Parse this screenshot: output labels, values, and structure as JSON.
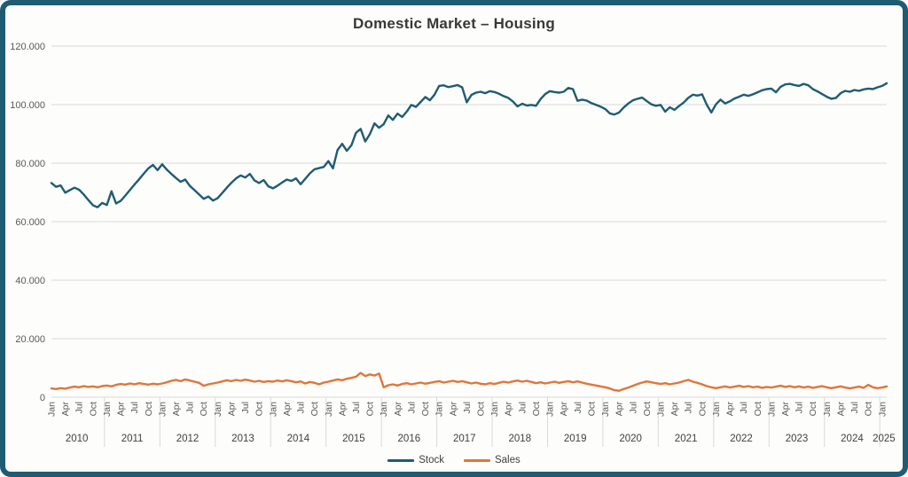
{
  "page": {
    "background": "#ffffff",
    "card_background": "#fdfdfb",
    "border_color": "#1f5c73"
  },
  "chart_data": {
    "type": "line",
    "title": "Domestic Market – Housing",
    "xlabel": "",
    "ylabel": "",
    "x_start": "Jan 2010",
    "x_end": "Feb 2025",
    "grid": true,
    "legend_position": "bottom",
    "gridline_color": "#d9d9d9",
    "tick_label_color": "#595959",
    "year_label_color": "#404040",
    "month_tick_labels": [
      "Jan",
      "Apr",
      "Jul",
      "Oct"
    ],
    "years": [
      "2010",
      "2011",
      "2012",
      "2013",
      "2014",
      "2015",
      "2016",
      "2017",
      "2018",
      "2019",
      "2020",
      "2021",
      "2022",
      "2023",
      "2024",
      "2025"
    ],
    "ylim_thousands": [
      0,
      120
    ],
    "yticks_thousands": [
      0,
      20,
      40,
      60,
      80,
      100,
      120
    ],
    "ytick_labels": [
      "0",
      "20.000",
      "40.000",
      "60.000",
      "80.000",
      "100.000",
      "120.000"
    ],
    "series": [
      {
        "name": "Stock",
        "color": "#1f5c73",
        "values_thousands": [
          73.2,
          71.9,
          72.4,
          69.9,
          70.8,
          71.6,
          70.9,
          69.3,
          67.4,
          65.6,
          64.9,
          66.4,
          65.7,
          70.4,
          66.2,
          67.1,
          68.9,
          70.8,
          72.7,
          74.5,
          76.4,
          78.2,
          79.4,
          77.6,
          79.6,
          77.8,
          76.3,
          74.9,
          73.6,
          74.4,
          72.2,
          70.8,
          69.3,
          67.8,
          68.6,
          67.2,
          68.0,
          69.8,
          71.6,
          73.3,
          74.8,
          75.8,
          75.1,
          76.3,
          74.1,
          73.2,
          74.2,
          72.1,
          71.4,
          72.3,
          73.4,
          74.4,
          73.9,
          74.8,
          72.8,
          74.6,
          76.5,
          77.9,
          78.3,
          78.7,
          80.7,
          78.2,
          84.5,
          86.6,
          84.2,
          86.1,
          90.4,
          91.7,
          87.4,
          89.9,
          93.6,
          92.1,
          93.3,
          96.3,
          94.8,
          96.9,
          95.8,
          97.6,
          99.9,
          99.2,
          100.9,
          102.6,
          101.5,
          103.4,
          106.4,
          106.6,
          106.0,
          106.3,
          106.7,
          105.9,
          100.8,
          103.3,
          104.1,
          104.4,
          103.9,
          104.6,
          104.3,
          103.7,
          102.9,
          102.3,
          101.1,
          99.4,
          100.3,
          99.7,
          99.9,
          99.6,
          101.9,
          103.6,
          104.6,
          104.3,
          104.1,
          104.4,
          105.7,
          105.3,
          101.3,
          101.7,
          101.4,
          100.5,
          99.9,
          99.3,
          98.5,
          97.0,
          96.6,
          97.3,
          99.0,
          100.4,
          101.5,
          102.0,
          102.4,
          101.2,
          100.1,
          99.6,
          99.9,
          97.6,
          99.1,
          98.2,
          99.5,
          100.7,
          102.3,
          103.4,
          103.1,
          103.5,
          100.0,
          97.3,
          100.1,
          101.7,
          100.4,
          101.1,
          102.1,
          102.7,
          103.4,
          103.0,
          103.5,
          104.2,
          104.9,
          105.3,
          105.5,
          104.2,
          106.1,
          106.9,
          107.1,
          106.7,
          106.4,
          107.1,
          106.6,
          105.3,
          104.5,
          103.6,
          102.7,
          102.0,
          102.3,
          103.9,
          104.7,
          104.4,
          105.0,
          104.7,
          105.2,
          105.5,
          105.3,
          105.9,
          106.4,
          107.3
        ]
      },
      {
        "name": "Sales",
        "color": "#e0763a",
        "values_thousands": [
          3.0,
          2.8,
          3.1,
          2.9,
          3.3,
          3.6,
          3.4,
          3.8,
          3.5,
          3.7,
          3.4,
          3.8,
          4.0,
          3.7,
          4.2,
          4.5,
          4.3,
          4.7,
          4.4,
          4.8,
          4.5,
          4.3,
          4.6,
          4.4,
          4.7,
          5.1,
          5.6,
          5.9,
          5.5,
          6.1,
          5.7,
          5.3,
          4.9,
          3.9,
          4.4,
          4.7,
          5.0,
          5.4,
          5.8,
          5.5,
          5.9,
          5.6,
          6.0,
          5.7,
          5.3,
          5.6,
          5.2,
          5.5,
          5.3,
          5.7,
          5.4,
          5.8,
          5.5,
          5.1,
          5.4,
          4.7,
          5.2,
          4.9,
          4.4,
          5.0,
          5.3,
          5.7,
          6.1,
          5.8,
          6.3,
          6.6,
          7.0,
          8.3,
          7.2,
          7.8,
          7.4,
          8.1,
          3.4,
          4.1,
          4.4,
          4.0,
          4.5,
          4.8,
          4.4,
          4.7,
          5.0,
          4.6,
          4.9,
          5.2,
          5.5,
          5.0,
          5.3,
          5.6,
          5.2,
          5.5,
          5.1,
          4.7,
          5.0,
          4.6,
          4.4,
          4.8,
          4.5,
          4.9,
          5.3,
          5.0,
          5.4,
          5.7,
          5.3,
          5.6,
          5.2,
          4.8,
          5.1,
          4.7,
          5.0,
          5.3,
          4.9,
          5.2,
          5.5,
          5.1,
          5.4,
          5.0,
          4.6,
          4.3,
          4.0,
          3.7,
          3.4,
          3.0,
          2.4,
          2.2,
          2.8,
          3.3,
          3.9,
          4.5,
          5.0,
          5.4,
          5.1,
          4.8,
          4.5,
          4.8,
          4.4,
          4.7,
          5.0,
          5.5,
          5.9,
          5.3,
          4.9,
          4.4,
          3.8,
          3.4,
          3.1,
          3.4,
          3.7,
          3.3,
          3.6,
          3.9,
          3.5,
          3.8,
          3.4,
          3.6,
          3.2,
          3.5,
          3.3,
          3.6,
          3.9,
          3.5,
          3.8,
          3.4,
          3.7,
          3.3,
          3.6,
          3.2,
          3.5,
          3.8,
          3.4,
          3.1,
          3.4,
          3.7,
          3.3,
          3.0,
          3.3,
          3.6,
          3.2,
          4.2,
          3.4,
          3.1,
          3.3,
          3.7
        ]
      }
    ]
  }
}
